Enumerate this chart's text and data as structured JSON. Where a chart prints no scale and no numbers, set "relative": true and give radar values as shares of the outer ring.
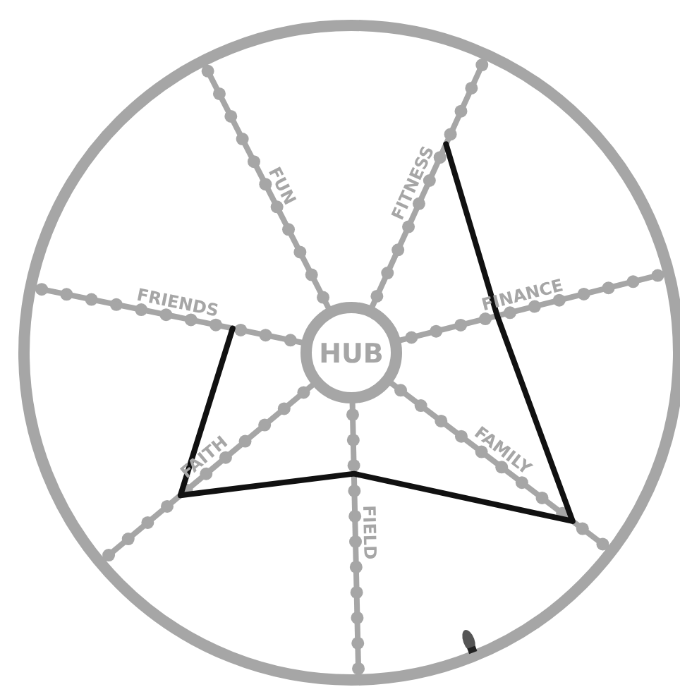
{
  "chart_data": {
    "type": "radar",
    "relative": true,
    "categories": [
      "FUN",
      "FITNESS",
      "FINANCE",
      "FAMILY",
      "FIELD",
      "FAITH",
      "FRIENDS"
    ],
    "series": [
      {
        "color": "#111111",
        "values": [
          null,
          0.7,
          0.46,
          0.85,
          0.37,
          0.68,
          0.37
        ]
      }
    ],
    "annotations": [
      "HUB"
    ]
  }
}
